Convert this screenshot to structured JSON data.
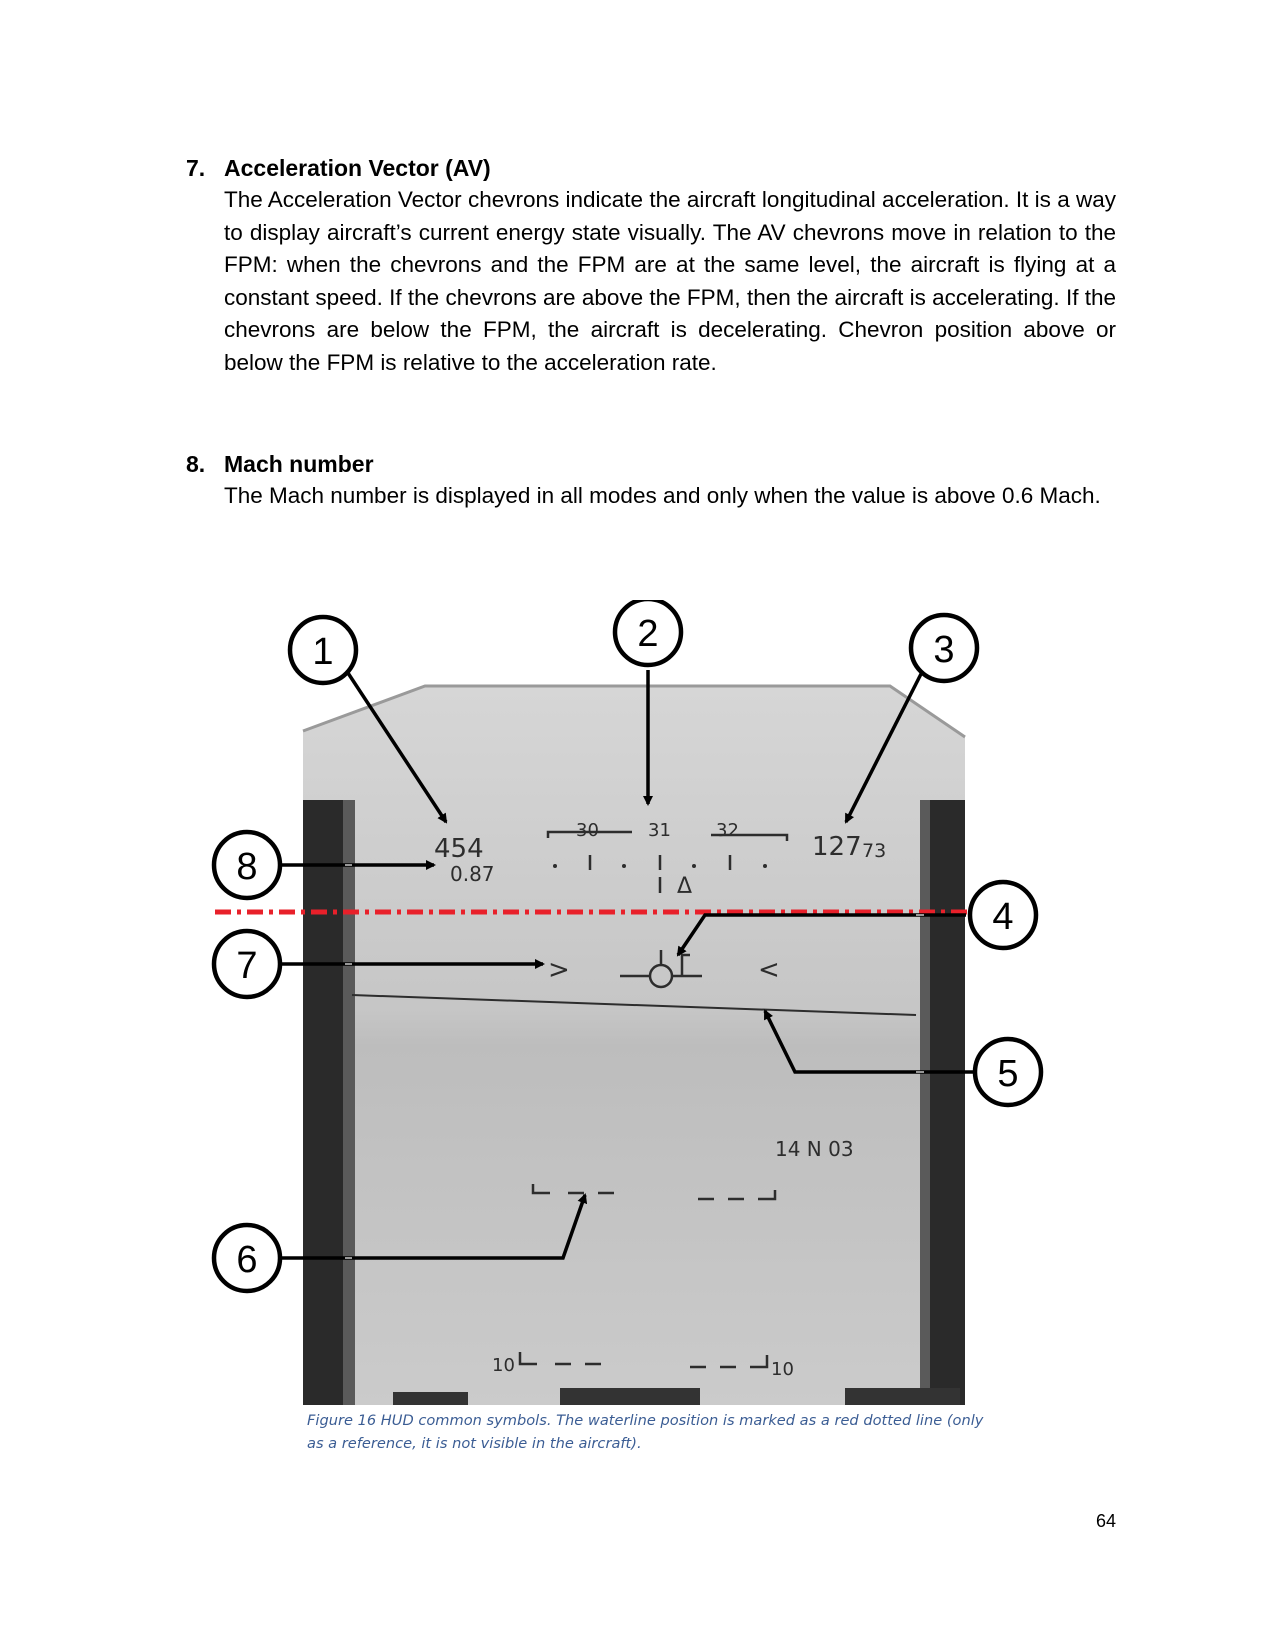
{
  "sections": [
    {
      "number": "7.",
      "title": "Acceleration Vector (AV)",
      "body": "The Acceleration Vector chevrons indicate the aircraft longitudinal acceleration. It is a way to display aircraft’s current energy state visually. The AV chevrons move in relation to the FPM: when the chevrons and the FPM are at the same level, the aircraft is flying at a constant speed. If the chevrons are above the FPM, then the aircraft is accelerating. If the chevrons are below the FPM, the aircraft is decelerating. Chevron position above or below the FPM is relative to the acceleration rate."
    },
    {
      "number": "8.",
      "title": "Mach number",
      "body": "The Mach number is displayed in all modes and only when the value is above 0.6 Mach."
    }
  ],
  "figure": {
    "hud": {
      "airspeed": "454",
      "mach": "0.87",
      "heading_scale": [
        "30",
        "31",
        "32"
      ],
      "heading_caret": "Δ",
      "altitude_main": "127",
      "altitude_small": "73",
      "av_left": ">",
      "av_right": "<",
      "info_readout": "14 N 03",
      "pitch_ladder_label_left": "10",
      "pitch_ladder_label_right": "10"
    },
    "callouts": [
      "1",
      "2",
      "3",
      "4",
      "5",
      "6",
      "7",
      "8"
    ],
    "waterline_color": "#e8202a",
    "caption": "Figure 16 HUD common symbols. The waterline position is marked as a red dotted line (only as a reference, it is not visible in the aircraft)."
  },
  "page_number": "64"
}
